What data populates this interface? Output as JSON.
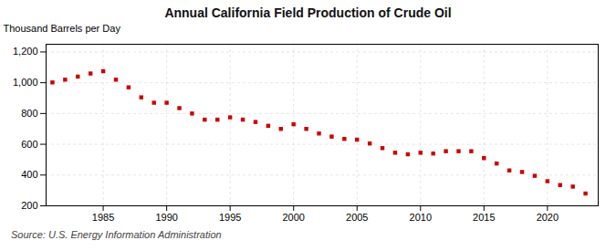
{
  "chart_data": {
    "type": "scatter",
    "title": "Annual California Field Production of Crude Oil",
    "ylabel": "Thousand Barrels per Day",
    "annotations": [
      "Source: U.S. Energy Information Administration"
    ],
    "x": [
      1981,
      1982,
      1983,
      1984,
      1985,
      1986,
      1987,
      1988,
      1989,
      1990,
      1991,
      1992,
      1993,
      1994,
      1995,
      1996,
      1997,
      1998,
      1999,
      2000,
      2001,
      2002,
      2003,
      2004,
      2005,
      2006,
      2007,
      2008,
      2009,
      2010,
      2011,
      2012,
      2013,
      2014,
      2015,
      2016,
      2017,
      2018,
      2019,
      2020,
      2021,
      2022,
      2023
    ],
    "values": [
      1002,
      1020,
      1040,
      1060,
      1075,
      1020,
      970,
      905,
      870,
      870,
      835,
      800,
      760,
      760,
      775,
      760,
      745,
      720,
      700,
      730,
      700,
      670,
      650,
      635,
      630,
      605,
      575,
      545,
      535,
      545,
      540,
      555,
      555,
      555,
      510,
      475,
      430,
      420,
      395,
      360,
      335,
      325,
      280
    ],
    "color": "#cc0000",
    "marker": "square",
    "xlim": [
      1980.5,
      2024
    ],
    "xticks": [
      1985,
      1990,
      1995,
      2000,
      2005,
      2010,
      2015,
      2020
    ],
    "ylim": [
      200,
      1250
    ],
    "yticks": [
      200,
      400,
      600,
      800,
      {
        "value": 1000,
        "label": "1,000"
      },
      {
        "value": 1200,
        "label": "1,200"
      }
    ],
    "grid": true
  }
}
